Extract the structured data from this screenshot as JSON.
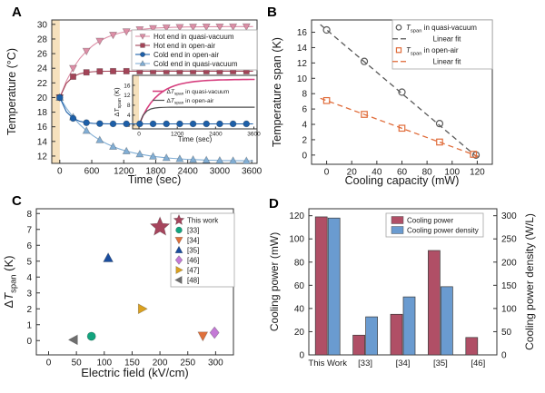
{
  "panel_letters": {
    "a": "A",
    "b": "B",
    "c": "C",
    "d": "D"
  },
  "chart_data": [
    {
      "panel": "A",
      "type": "line",
      "xlabel": "Time (sec)",
      "ylabel": "Temperature (°C)",
      "xlim": [
        -150,
        3700
      ],
      "ylim": [
        11,
        30.6
      ],
      "xticks": [
        0,
        600,
        1200,
        1800,
        2400,
        3000,
        3600
      ],
      "yticks": [
        12,
        14,
        16,
        18,
        20,
        22,
        24,
        26,
        28,
        30
      ],
      "shaded_band": {
        "x0": -150,
        "x1": 0,
        "color": "#f6e1bd"
      },
      "x_start": 0,
      "x_step": 125,
      "series": [
        {
          "name": "Hot end in quasi-vacuum",
          "color": "#dd8fa7",
          "marker": "triangle-down",
          "marker_every": 2,
          "values": [
            20,
            22.27,
            24.01,
            25.33,
            26.35,
            27.13,
            27.73,
            28.19,
            28.55,
            28.81,
            29.02,
            29.18,
            29.3,
            29.39,
            29.47,
            29.52,
            29.56,
            29.59,
            29.62,
            29.64,
            29.65,
            29.66,
            29.67,
            29.68,
            29.68,
            29.69,
            29.69,
            29.7,
            29.7,
            29.7
          ]
        },
        {
          "name": "Hot end in open-air",
          "color": "#a34458",
          "marker": "square",
          "marker_every": 2,
          "values": [
            20,
            21.95,
            22.85,
            23.25,
            23.44,
            23.53,
            23.57,
            23.59,
            23.6,
            23.6,
            23.6,
            23.6,
            23.6,
            23.6,
            23.6,
            23.6,
            23.6,
            23.6,
            23.6,
            23.6,
            23.6,
            23.6,
            23.6,
            23.6,
            23.6,
            23.6,
            23.6,
            23.6,
            23.6,
            23.6
          ]
        },
        {
          "name": "Cold end in open-air",
          "color": "#1d5fa8",
          "marker": "circle",
          "marker_every": 2,
          "values": [
            20,
            18.05,
            17.15,
            16.75,
            16.56,
            16.47,
            16.43,
            16.41,
            16.4,
            16.4,
            16.4,
            16.4,
            16.4,
            16.4,
            16.4,
            16.4,
            16.4,
            16.4,
            16.4,
            16.4,
            16.4,
            16.4,
            16.4,
            16.4,
            16.4,
            16.4,
            16.4,
            16.4,
            16.4,
            16.4
          ]
        },
        {
          "name": "Cold end in quasi-vacuum",
          "color": "#82aed4",
          "marker": "triangle-up",
          "marker_every": 2,
          "values": [
            20,
            18.54,
            17.32,
            16.31,
            15.47,
            14.77,
            14.19,
            13.7,
            13.3,
            12.96,
            12.68,
            12.45,
            12.26,
            12.1,
            11.96,
            11.85,
            11.76,
            11.68,
            11.62,
            11.56,
            11.52,
            11.48,
            11.45,
            11.43,
            11.4,
            11.39,
            11.37,
            11.36,
            11.35,
            11.34
          ]
        }
      ],
      "legend": {
        "position": "top-right",
        "border": true
      },
      "inset": {
        "xlabel": "Time (sec)",
        "ylabel": "Δ*T*_{span} (K)",
        "xlim": [
          -200,
          3700
        ],
        "ylim": [
          -1.5,
          20
        ],
        "xticks": [
          0,
          1200,
          2400,
          3600
        ],
        "yticks": [
          0,
          4,
          8,
          12,
          16
        ],
        "shaded_band": {
          "x0": -200,
          "x1": 0,
          "color": "#f6e1bd"
        },
        "x_start": 0,
        "x_step": 125,
        "series": [
          {
            "name": "Δ*T*_{span} in quasi-vacuum",
            "color": "#d63f7e",
            "values": [
              0,
              3.73,
              6.69,
              9.02,
              10.88,
              12.36,
              13.54,
              14.49,
              15.25,
              15.85,
              16.34,
              16.73,
              17.04,
              17.29,
              17.51,
              17.67,
              17.8,
              17.91,
              18,
              18.08,
              18.13,
              18.18,
              18.22,
              18.25,
              18.28,
              18.3,
              18.32,
              18.34,
              18.35,
              18.36
            ]
          },
          {
            "name": "Δ*T*_{span} in open-air",
            "color": "#4d4d4d",
            "values": [
              0,
              3.9,
              5.7,
              6.5,
              6.88,
              7.06,
              7.14,
              7.18,
              7.2,
              7.2,
              7.2,
              7.2,
              7.2,
              7.2,
              7.2,
              7.2,
              7.2,
              7.2,
              7.2,
              7.2,
              7.2,
              7.2,
              7.2,
              7.2,
              7.2,
              7.2,
              7.2,
              7.2,
              7.2,
              7.2
            ]
          }
        ]
      }
    },
    {
      "panel": "B",
      "type": "scatter",
      "xlabel": "Cooling capacity (mW)",
      "ylabel": "Temperature span (K)",
      "xlim": [
        -12,
        132
      ],
      "ylim": [
        -1.2,
        17.6
      ],
      "xticks": [
        0,
        20,
        40,
        60,
        80,
        100,
        120
      ],
      "yticks": [
        0,
        2,
        4,
        6,
        8,
        10,
        12,
        14,
        16
      ],
      "series": [
        {
          "name": "*T*_{span} in quasi-vacuum",
          "marker": "circle-open",
          "color": "#595959",
          "points": [
            [
              0,
              16.3
            ],
            [
              30,
              12.2
            ],
            [
              60,
              8.2
            ],
            [
              90,
              4.1
            ],
            [
              119,
              0.0
            ]
          ]
        },
        {
          "name": "Linear fit",
          "type": "dashed-line",
          "color": "#595959",
          "points": [
            [
              -5,
              17.0
            ],
            [
              122,
              -0.55
            ]
          ]
        },
        {
          "name": "*T*_{span} in open-air",
          "marker": "square-open",
          "color": "#e06c3a",
          "points": [
            [
              0,
              7.1
            ],
            [
              30,
              5.3
            ],
            [
              60,
              3.5
            ],
            [
              90,
              1.7
            ],
            [
              117,
              0.1
            ]
          ]
        },
        {
          "name": "Linear fit",
          "type": "dashed-line",
          "color": "#e06c3a",
          "points": [
            [
              -5,
              7.4
            ],
            [
              122,
              -0.24
            ]
          ]
        }
      ],
      "legend": {
        "position": "top-right",
        "border": true
      }
    },
    {
      "panel": "C",
      "type": "scatter",
      "xlabel": "Electric field (kV/cm)",
      "ylabel": "Δ*T*_{span} (K)",
      "xlim": [
        -22,
        332
      ],
      "ylim": [
        -0.9,
        8.3
      ],
      "xticks": [
        0,
        50,
        100,
        150,
        200,
        250,
        300
      ],
      "yticks": [
        0,
        1,
        2,
        3,
        4,
        5,
        6,
        7,
        8
      ],
      "series": [
        {
          "name": "This work",
          "marker": "star",
          "color": "#a6455d",
          "size": 11,
          "points": [
            [
              200,
              7.15
            ]
          ]
        },
        {
          "name": "[33]",
          "marker": "circle",
          "color": "#12a47e",
          "points": [
            [
              77,
              0.27
            ]
          ]
        },
        {
          "name": "[34]",
          "marker": "triangle-down",
          "color": "#e0713c",
          "points": [
            [
              277,
              0.3
            ]
          ]
        },
        {
          "name": "[35]",
          "marker": "triangle-up",
          "color": "#1a4d9e",
          "points": [
            [
              107,
              5.2
            ]
          ]
        },
        {
          "name": "[46]",
          "marker": "diamond",
          "color": "#c47ad6",
          "points": [
            [
              298,
              0.5
            ]
          ]
        },
        {
          "name": "[47]",
          "marker": "triangle-right",
          "color": "#dba11f",
          "points": [
            [
              168,
              2.0
            ]
          ]
        },
        {
          "name": "[48]",
          "marker": "triangle-left",
          "color": "#6e6e6e",
          "points": [
            [
              45,
              0.05
            ]
          ]
        }
      ],
      "legend": {
        "position": "top-right",
        "border": true
      }
    },
    {
      "panel": "D",
      "type": "bar",
      "categories": [
        "This Work",
        "[33]",
        "[34]",
        "[35]",
        "[46]"
      ],
      "ylabel_left": "Cooling power (mW)",
      "ylabel_right": "Cooling power density (W/L)",
      "ylim_left": [
        0,
        126
      ],
      "ylim_right": [
        0,
        315
      ],
      "yticks_left": [
        0,
        20,
        40,
        60,
        80,
        100,
        120
      ],
      "yticks_right": [
        0,
        50,
        100,
        150,
        200,
        250,
        300
      ],
      "series": [
        {
          "name": "Cooling power",
          "axis": "left",
          "color": "#b04f66",
          "values": [
            119,
            17,
            35,
            90,
            15
          ]
        },
        {
          "name": "Cooling power density",
          "axis": "right",
          "color": "#6a9bd0",
          "values": [
            295,
            82,
            125,
            147,
            null
          ]
        }
      ],
      "legend": {
        "position": "top-center",
        "border": true
      }
    }
  ]
}
